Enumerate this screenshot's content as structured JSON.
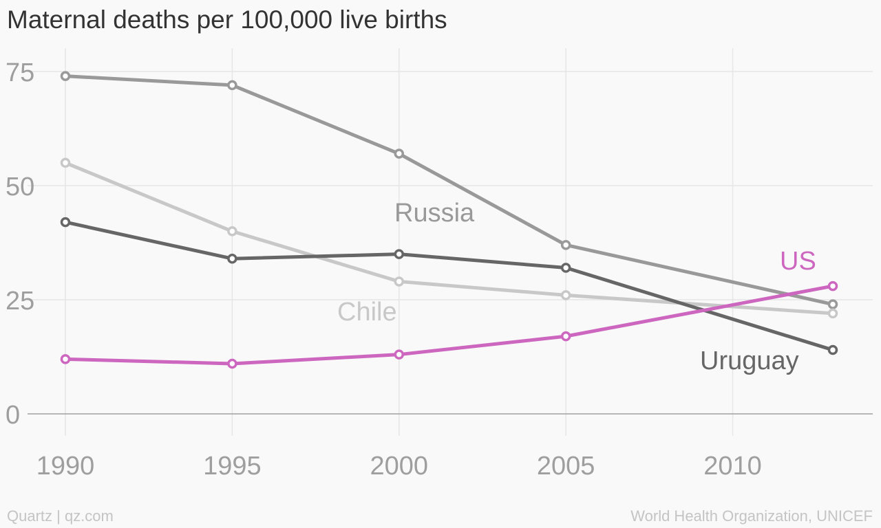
{
  "title": "Maternal deaths per 100,000 live births",
  "footer": {
    "left": "Quartz | qz.com",
    "right": "World Health Organization, UNICEF"
  },
  "chart_data": {
    "type": "line",
    "title": "Maternal deaths per 100,000 live births",
    "xlabel": "",
    "ylabel": "",
    "xlim": [
      1990,
      2013
    ],
    "ylim": [
      0,
      75
    ],
    "xticks": [
      1990,
      1995,
      2000,
      2005,
      2010
    ],
    "yticks": [
      0,
      25,
      50,
      75
    ],
    "x": [
      1990,
      1995,
      2000,
      2005,
      2013
    ],
    "grid": true,
    "series": [
      {
        "name": "Russia",
        "color": "#999999",
        "values": [
          74,
          72,
          57,
          37,
          24
        ]
      },
      {
        "name": "Chile",
        "color": "#c8c8c8",
        "values": [
          55,
          40,
          29,
          26,
          22
        ]
      },
      {
        "name": "Uruguay",
        "color": "#666666",
        "values": [
          42,
          34,
          35,
          32,
          14
        ]
      },
      {
        "name": "US",
        "color": "#cc66bf",
        "values": [
          12,
          11,
          13,
          17,
          28
        ]
      }
    ]
  }
}
